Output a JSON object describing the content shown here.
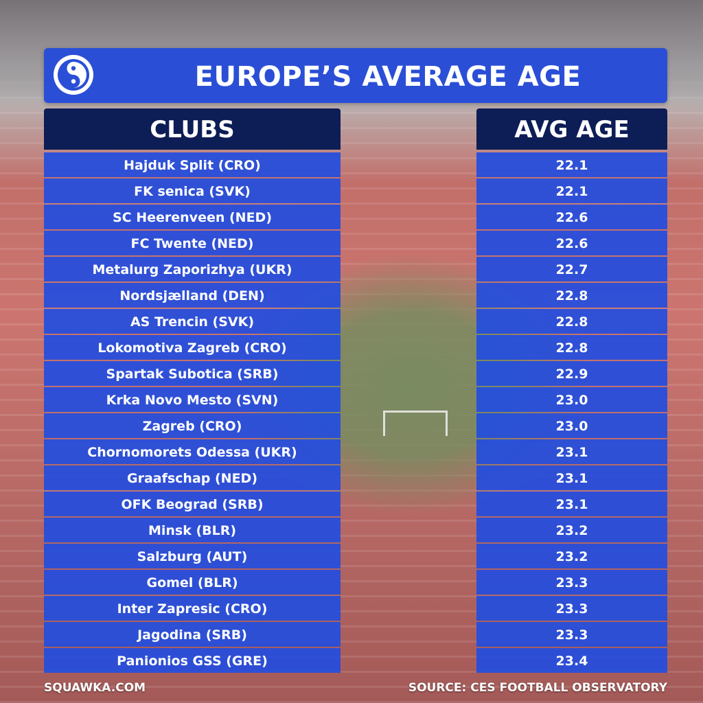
{
  "title": "EUROPE’S AVERAGE AGE",
  "headers": {
    "clubs": "CLUBS",
    "avg_age": "AVG AGE"
  },
  "rows": [
    {
      "club": "Hajduk Split (CRO)",
      "age": "22.1"
    },
    {
      "club": "FK senica (SVK)",
      "age": "22.1"
    },
    {
      "club": "SC Heerenveen (NED)",
      "age": "22.6"
    },
    {
      "club": "FC Twente (NED)",
      "age": "22.6"
    },
    {
      "club": "Metalurg Zaporizhya (UKR)",
      "age": "22.7"
    },
    {
      "club": "Nordsjælland (DEN)",
      "age": "22.8"
    },
    {
      "club": "AS Trencin (SVK)",
      "age": "22.8"
    },
    {
      "club": "Lokomotiva Zagreb (CRO)",
      "age": "22.8"
    },
    {
      "club": "Spartak Subotica (SRB)",
      "age": "22.9"
    },
    {
      "club": "Krka Novo Mesto (SVN)",
      "age": "23.0"
    },
    {
      "club": "Zagreb (CRO)",
      "age": "23.0"
    },
    {
      "club": "Chornomorets Odessa (UKR)",
      "age": "23.1"
    },
    {
      "club": "Graafschap (NED)",
      "age": "23.1"
    },
    {
      "club": "OFK Beograd (SRB)",
      "age": "23.1"
    },
    {
      "club": "Minsk (BLR)",
      "age": "23.2"
    },
    {
      "club": "Salzburg (AUT)",
      "age": "23.2"
    },
    {
      "club": "Gomel (BLR)",
      "age": "23.3"
    },
    {
      "club": "Inter Zapresic (CRO)",
      "age": "23.3"
    },
    {
      "club": "Jagodina (SRB)",
      "age": "23.3"
    },
    {
      "club": "Panionios GSS (GRE)",
      "age": "23.4"
    }
  ],
  "footer": {
    "left": "SQUAWKA.COM",
    "right": "SOURCE: CES FOOTBALL OBSERVATORY"
  },
  "icons": {
    "logo": "squawka-logo-icon"
  },
  "colors": {
    "title_bar": "#2a4fd6",
    "header": "#0d1d55",
    "row": "#244ede"
  }
}
